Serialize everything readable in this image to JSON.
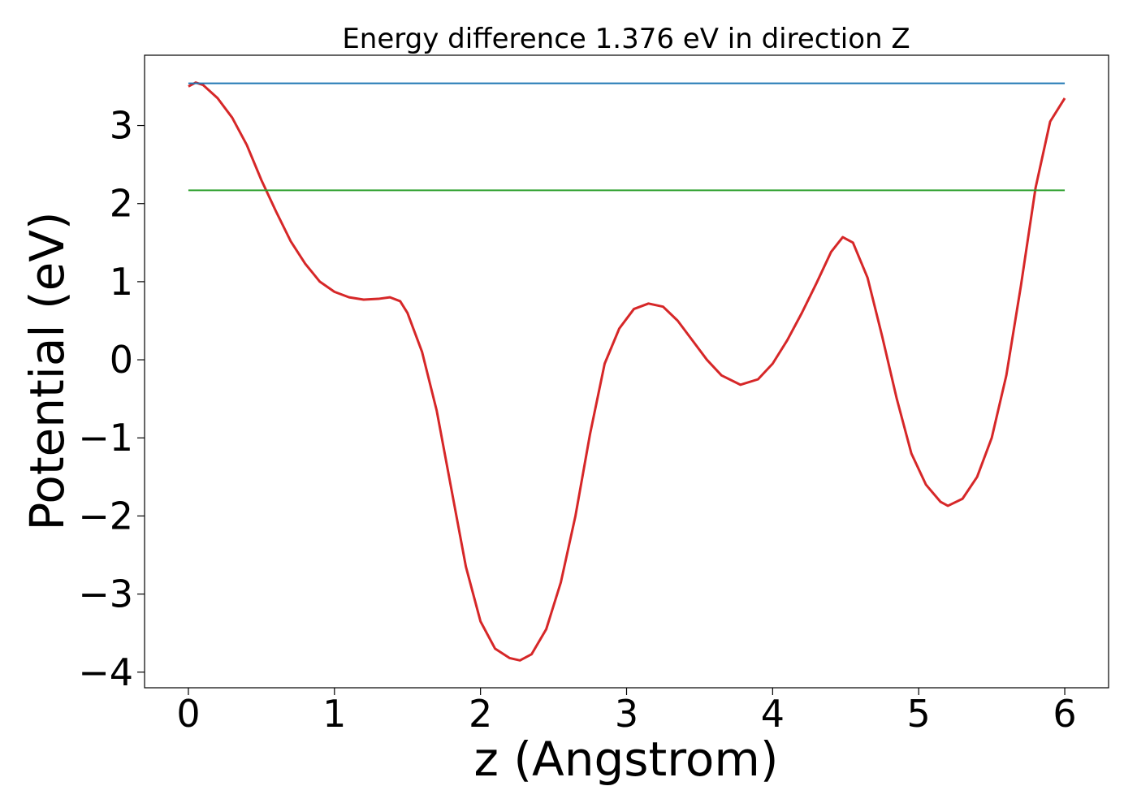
{
  "chart_data": {
    "type": "line",
    "title": "Energy difference 1.376 eV in direction Z",
    "xlabel": "z (Angstrom)",
    "ylabel": "Potential (eV)",
    "xlim": [
      -0.3,
      6.3
    ],
    "ylim": [
      -4.2,
      3.9
    ],
    "xticks": [
      0,
      1,
      2,
      3,
      4,
      5,
      6
    ],
    "xtick_labels": [
      "0",
      "1",
      "2",
      "3",
      "4",
      "5",
      "6"
    ],
    "yticks": [
      3,
      2,
      1,
      0,
      -1,
      -2,
      -3,
      -4
    ],
    "ytick_labels": [
      "3",
      "2",
      "1",
      "0",
      "−1",
      "−2",
      "−3",
      "−4"
    ],
    "grid": false,
    "series": [
      {
        "color": "#d62728",
        "points": [
          [
            0.0,
            3.5
          ],
          [
            0.05,
            3.55
          ],
          [
            0.1,
            3.52
          ],
          [
            0.2,
            3.35
          ],
          [
            0.3,
            3.1
          ],
          [
            0.4,
            2.75
          ],
          [
            0.5,
            2.3
          ],
          [
            0.6,
            1.9
          ],
          [
            0.7,
            1.52
          ],
          [
            0.8,
            1.23
          ],
          [
            0.9,
            1.0
          ],
          [
            1.0,
            0.87
          ],
          [
            1.1,
            0.8
          ],
          [
            1.2,
            0.77
          ],
          [
            1.3,
            0.78
          ],
          [
            1.38,
            0.8
          ],
          [
            1.45,
            0.75
          ],
          [
            1.5,
            0.6
          ],
          [
            1.6,
            0.1
          ],
          [
            1.7,
            -0.65
          ],
          [
            1.8,
            -1.65
          ],
          [
            1.9,
            -2.65
          ],
          [
            2.0,
            -3.35
          ],
          [
            2.1,
            -3.7
          ],
          [
            2.2,
            -3.82
          ],
          [
            2.27,
            -3.85
          ],
          [
            2.35,
            -3.77
          ],
          [
            2.45,
            -3.45
          ],
          [
            2.55,
            -2.85
          ],
          [
            2.65,
            -2.0
          ],
          [
            2.75,
            -0.95
          ],
          [
            2.85,
            -0.05
          ],
          [
            2.95,
            0.4
          ],
          [
            3.05,
            0.65
          ],
          [
            3.15,
            0.72
          ],
          [
            3.25,
            0.68
          ],
          [
            3.35,
            0.5
          ],
          [
            3.45,
            0.25
          ],
          [
            3.55,
            0.0
          ],
          [
            3.65,
            -0.2
          ],
          [
            3.78,
            -0.32
          ],
          [
            3.9,
            -0.25
          ],
          [
            4.0,
            -0.05
          ],
          [
            4.1,
            0.25
          ],
          [
            4.2,
            0.6
          ],
          [
            4.3,
            0.98
          ],
          [
            4.4,
            1.38
          ],
          [
            4.48,
            1.57
          ],
          [
            4.55,
            1.5
          ],
          [
            4.65,
            1.05
          ],
          [
            4.75,
            0.3
          ],
          [
            4.85,
            -0.5
          ],
          [
            4.95,
            -1.2
          ],
          [
            5.05,
            -1.6
          ],
          [
            5.15,
            -1.82
          ],
          [
            5.2,
            -1.87
          ],
          [
            5.3,
            -1.78
          ],
          [
            5.4,
            -1.5
          ],
          [
            5.5,
            -1.0
          ],
          [
            5.6,
            -0.2
          ],
          [
            5.7,
            0.95
          ],
          [
            5.8,
            2.2
          ],
          [
            5.9,
            3.05
          ],
          [
            6.0,
            3.35
          ]
        ]
      },
      {
        "color": "#1f77b4",
        "points": [
          [
            0.0,
            3.54
          ],
          [
            6.0,
            3.54
          ]
        ]
      },
      {
        "color": "#2ca02c",
        "points": [
          [
            0.0,
            2.17
          ],
          [
            6.0,
            2.17
          ]
        ]
      }
    ]
  }
}
